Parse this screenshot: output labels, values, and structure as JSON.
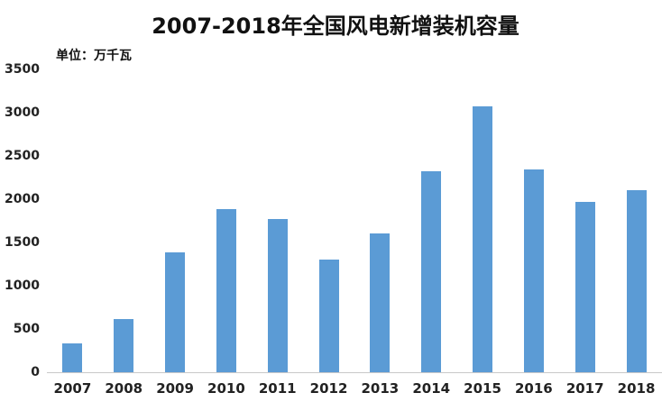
{
  "chart_data": {
    "type": "bar",
    "title": "2007-2018年全国风电新增装机容量",
    "unit_label": "单位：万千瓦",
    "categories": [
      "2007",
      "2008",
      "2009",
      "2010",
      "2011",
      "2012",
      "2013",
      "2014",
      "2015",
      "2016",
      "2017",
      "2018"
    ],
    "values": [
      340,
      620,
      1390,
      1890,
      1770,
      1300,
      1610,
      2330,
      3070,
      2350,
      1970,
      2110
    ],
    "xlabel": "",
    "ylabel": "",
    "ylim": [
      0,
      3500
    ],
    "yticks": [
      0,
      500,
      1000,
      1500,
      2000,
      2500,
      3000,
      3500
    ],
    "bar_color": "#5b9bd5",
    "grid": false,
    "legend": false
  }
}
